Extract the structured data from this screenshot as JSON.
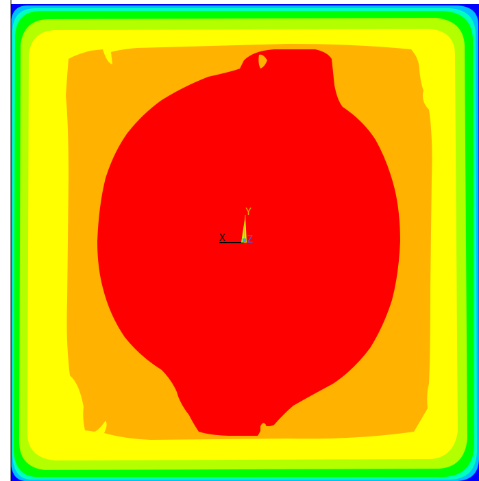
{
  "plot": {
    "type": "contour",
    "band_colors": [
      "#0000ff",
      "#00bfff",
      "#00ffbf",
      "#00ff00",
      "#b3ff00",
      "#ffff00",
      "#ffb300",
      "#ff0000"
    ],
    "frame_color": "#000000"
  },
  "triad": {
    "x_label": "X",
    "y_label": "Y",
    "z_label": "Z",
    "x_color": "#000000",
    "y_color": "#e0b000",
    "z_color": "#4060ff"
  }
}
